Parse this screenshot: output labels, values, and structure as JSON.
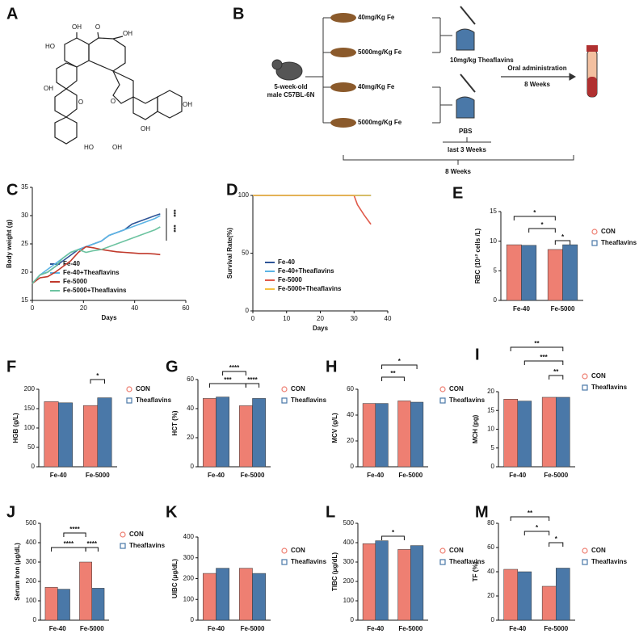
{
  "structure": {
    "panel": "A",
    "atoms": [
      "OH",
      "O",
      "OH",
      "HO",
      "OH",
      "O",
      "O",
      "OH",
      "HO",
      "OH",
      "OH"
    ]
  },
  "diagram": {
    "panel": "B",
    "mouse": [
      "5-week-old",
      "male C57BL-6N"
    ],
    "groups": [
      "40mg/Kg Fe",
      "5000mg/Kg Fe",
      "40mg/Kg Fe",
      "5000mg/Kg Fe"
    ],
    "treatment": "10mg/kg Theaflavins",
    "control": "PBS",
    "period": "last 3 Weeks",
    "route": "Oral administration",
    "route_duration": "8 Weeks",
    "total_duration": "8 Weeks"
  },
  "chart_data": [
    {
      "type": "line",
      "panel": "C",
      "xlabel": "Days",
      "ylabel": "Body weight (g)",
      "x": [
        0,
        3,
        6,
        9,
        12,
        15,
        18,
        21,
        24,
        27,
        30,
        33,
        36,
        39,
        42,
        45,
        48,
        50
      ],
      "xlim": [
        0,
        60
      ],
      "xticks": [
        0,
        20,
        40,
        60
      ],
      "ylim": [
        15,
        35
      ],
      "yticks": [
        15,
        20,
        25,
        30,
        35
      ],
      "series": [
        {
          "name": "Fe-40",
          "color": "#2f5597",
          "values": [
            18,
            19.5,
            20,
            21,
            22,
            23,
            24,
            24.5,
            25,
            25.5,
            26.5,
            27,
            27.5,
            28.5,
            29,
            29.5,
            30,
            30.3
          ]
        },
        {
          "name": "Fe-40+Theaflavins",
          "color": "#5bb4e5",
          "values": [
            18,
            19.5,
            20.5,
            21.5,
            22.5,
            23.5,
            24,
            24.5,
            25,
            25.5,
            26.5,
            27,
            27.5,
            28,
            28.5,
            29,
            29.5,
            30
          ]
        },
        {
          "name": "Fe-5000",
          "color": "#c0392b",
          "values": [
            18,
            19,
            19.2,
            20,
            21,
            22,
            23.5,
            24.5,
            24.3,
            24,
            23.8,
            23.6,
            23.5,
            23.4,
            23.3,
            23.3,
            23.2,
            23.1
          ]
        },
        {
          "name": "Fe-5000+Theaflavins",
          "color": "#6cc3a0",
          "values": [
            18,
            19.5,
            20,
            21,
            22.5,
            23.5,
            24,
            23.5,
            23.8,
            24,
            24.5,
            25,
            25.5,
            26,
            26.5,
            27,
            27.5,
            28
          ]
        }
      ],
      "annotations": [
        "***",
        "***"
      ]
    },
    {
      "type": "line",
      "panel": "D",
      "xlabel": "Days",
      "ylabel": "Survival Rate(%)",
      "x": [
        0,
        30,
        31,
        33,
        35
      ],
      "xlim": [
        0,
        40
      ],
      "xticks": [
        0,
        10,
        20,
        30,
        40
      ],
      "ylim": [
        0,
        100
      ],
      "yticks": [
        0,
        50,
        100
      ],
      "series": [
        {
          "name": "Fe-40",
          "color": "#2f5597",
          "values": [
            100,
            100,
            100,
            100,
            100
          ]
        },
        {
          "name": "Fe-40+Theaflavins",
          "color": "#5bb4e5",
          "values": [
            100,
            100,
            100,
            100,
            100
          ]
        },
        {
          "name": "Fe-5000",
          "color": "#e05a4a",
          "values": [
            100,
            100,
            92,
            83,
            75
          ]
        },
        {
          "name": "Fe-5000+Theaflavins",
          "color": "#f5c242",
          "values": [
            100,
            100,
            100,
            100,
            100
          ]
        }
      ]
    },
    {
      "type": "bar",
      "panel": "E",
      "ylabel": "RBC (10¹² cells /L)",
      "categories": [
        "Fe-40",
        "Fe-5000"
      ],
      "ylim": [
        0,
        15
      ],
      "yticks": [
        0,
        5,
        10,
        15
      ],
      "series": [
        {
          "name": "CON",
          "color": "#ee7f72",
          "values": [
            9.4,
            8.6
          ]
        },
        {
          "name": "Theaflavins",
          "color": "#4a78a8",
          "values": [
            9.3,
            9.4
          ]
        }
      ],
      "annotations": [
        "*",
        "*",
        "*"
      ]
    },
    {
      "type": "bar",
      "panel": "F",
      "ylabel": "HGB (g/L)",
      "categories": [
        "Fe-40",
        "Fe-5000"
      ],
      "ylim": [
        0,
        200
      ],
      "yticks": [
        0,
        50,
        100,
        150,
        200
      ],
      "series": [
        {
          "name": "CON",
          "color": "#ee7f72",
          "values": [
            168,
            158
          ]
        },
        {
          "name": "Theaflavins",
          "color": "#4a78a8",
          "values": [
            165,
            178
          ]
        }
      ],
      "annotations": [
        "*"
      ]
    },
    {
      "type": "bar",
      "panel": "G",
      "ylabel": "HCT (%)",
      "categories": [
        "Fe-40",
        "Fe-5000"
      ],
      "ylim": [
        0,
        60
      ],
      "yticks": [
        0,
        20,
        40,
        60
      ],
      "series": [
        {
          "name": "CON",
          "color": "#ee7f72",
          "values": [
            47,
            42
          ]
        },
        {
          "name": "Theaflavins",
          "color": "#4a78a8",
          "values": [
            48,
            47
          ]
        }
      ],
      "annotations": [
        "****",
        "***",
        "****"
      ]
    },
    {
      "type": "bar",
      "panel": "H",
      "ylabel": "MCV (g/L)",
      "categories": [
        "Fe-40",
        "Fe-5000"
      ],
      "ylim": [
        0,
        60
      ],
      "yticks": [
        0,
        20,
        40,
        60
      ],
      "series": [
        {
          "name": "CON",
          "color": "#ee7f72",
          "values": [
            49,
            51
          ]
        },
        {
          "name": "Theaflavins",
          "color": "#4a78a8",
          "values": [
            49,
            50
          ]
        }
      ],
      "annotations": [
        "*",
        "**"
      ]
    },
    {
      "type": "bar",
      "panel": "I",
      "ylabel": "MCH (pg)",
      "categories": [
        "Fe-40",
        "Fe-5000"
      ],
      "ylim": [
        0,
        20
      ],
      "yticks": [
        0,
        5,
        10,
        15,
        20
      ],
      "series": [
        {
          "name": "CON",
          "color": "#ee7f72",
          "values": [
            18,
            18.5
          ]
        },
        {
          "name": "Theaflavins",
          "color": "#4a78a8",
          "values": [
            17.5,
            18.5
          ]
        }
      ],
      "annotations": [
        "**",
        "***",
        "**"
      ]
    },
    {
      "type": "bar",
      "panel": "J",
      "ylabel": "Serum Iron (μg/dL)",
      "categories": [
        "Fe-40",
        "Fe-5000"
      ],
      "ylim": [
        0,
        500
      ],
      "yticks": [
        0,
        100,
        200,
        300,
        400,
        500
      ],
      "series": [
        {
          "name": "CON",
          "color": "#ee7f72",
          "values": [
            170,
            300
          ]
        },
        {
          "name": "Theaflavins",
          "color": "#4a78a8",
          "values": [
            160,
            165
          ]
        }
      ],
      "annotations": [
        "****",
        "****",
        "****"
      ]
    },
    {
      "type": "bar",
      "panel": "K",
      "ylabel": "UIBC (μg/dL)",
      "categories": [
        "Fe-40",
        "Fe-5000"
      ],
      "ylim": [
        0,
        400
      ],
      "yticks": [
        0,
        100,
        200,
        300,
        400
      ],
      "series": [
        {
          "name": "CON",
          "color": "#ee7f72",
          "values": [
            225,
            250
          ]
        },
        {
          "name": "Theaflavins",
          "color": "#4a78a8",
          "values": [
            250,
            225
          ]
        }
      ]
    },
    {
      "type": "bar",
      "panel": "L",
      "ylabel": "TIBC (μg/dL)",
      "categories": [
        "Fe-40",
        "Fe-5000"
      ],
      "ylim": [
        0,
        500
      ],
      "yticks": [
        0,
        100,
        200,
        300,
        400,
        500
      ],
      "series": [
        {
          "name": "CON",
          "color": "#ee7f72",
          "values": [
            395,
            365
          ]
        },
        {
          "name": "Theaflavins",
          "color": "#4a78a8",
          "values": [
            410,
            385
          ]
        }
      ],
      "annotations": [
        "*"
      ]
    },
    {
      "type": "bar",
      "panel": "M",
      "ylabel": "TF (%)",
      "categories": [
        "Fe-40",
        "Fe-5000"
      ],
      "ylim": [
        0,
        80
      ],
      "yticks": [
        0,
        20,
        40,
        60,
        80
      ],
      "series": [
        {
          "name": "CON",
          "color": "#ee7f72",
          "values": [
            42,
            28
          ]
        },
        {
          "name": "Theaflavins",
          "color": "#4a78a8",
          "values": [
            40,
            43
          ]
        }
      ],
      "annotations": [
        "**",
        "*",
        "*"
      ]
    }
  ]
}
